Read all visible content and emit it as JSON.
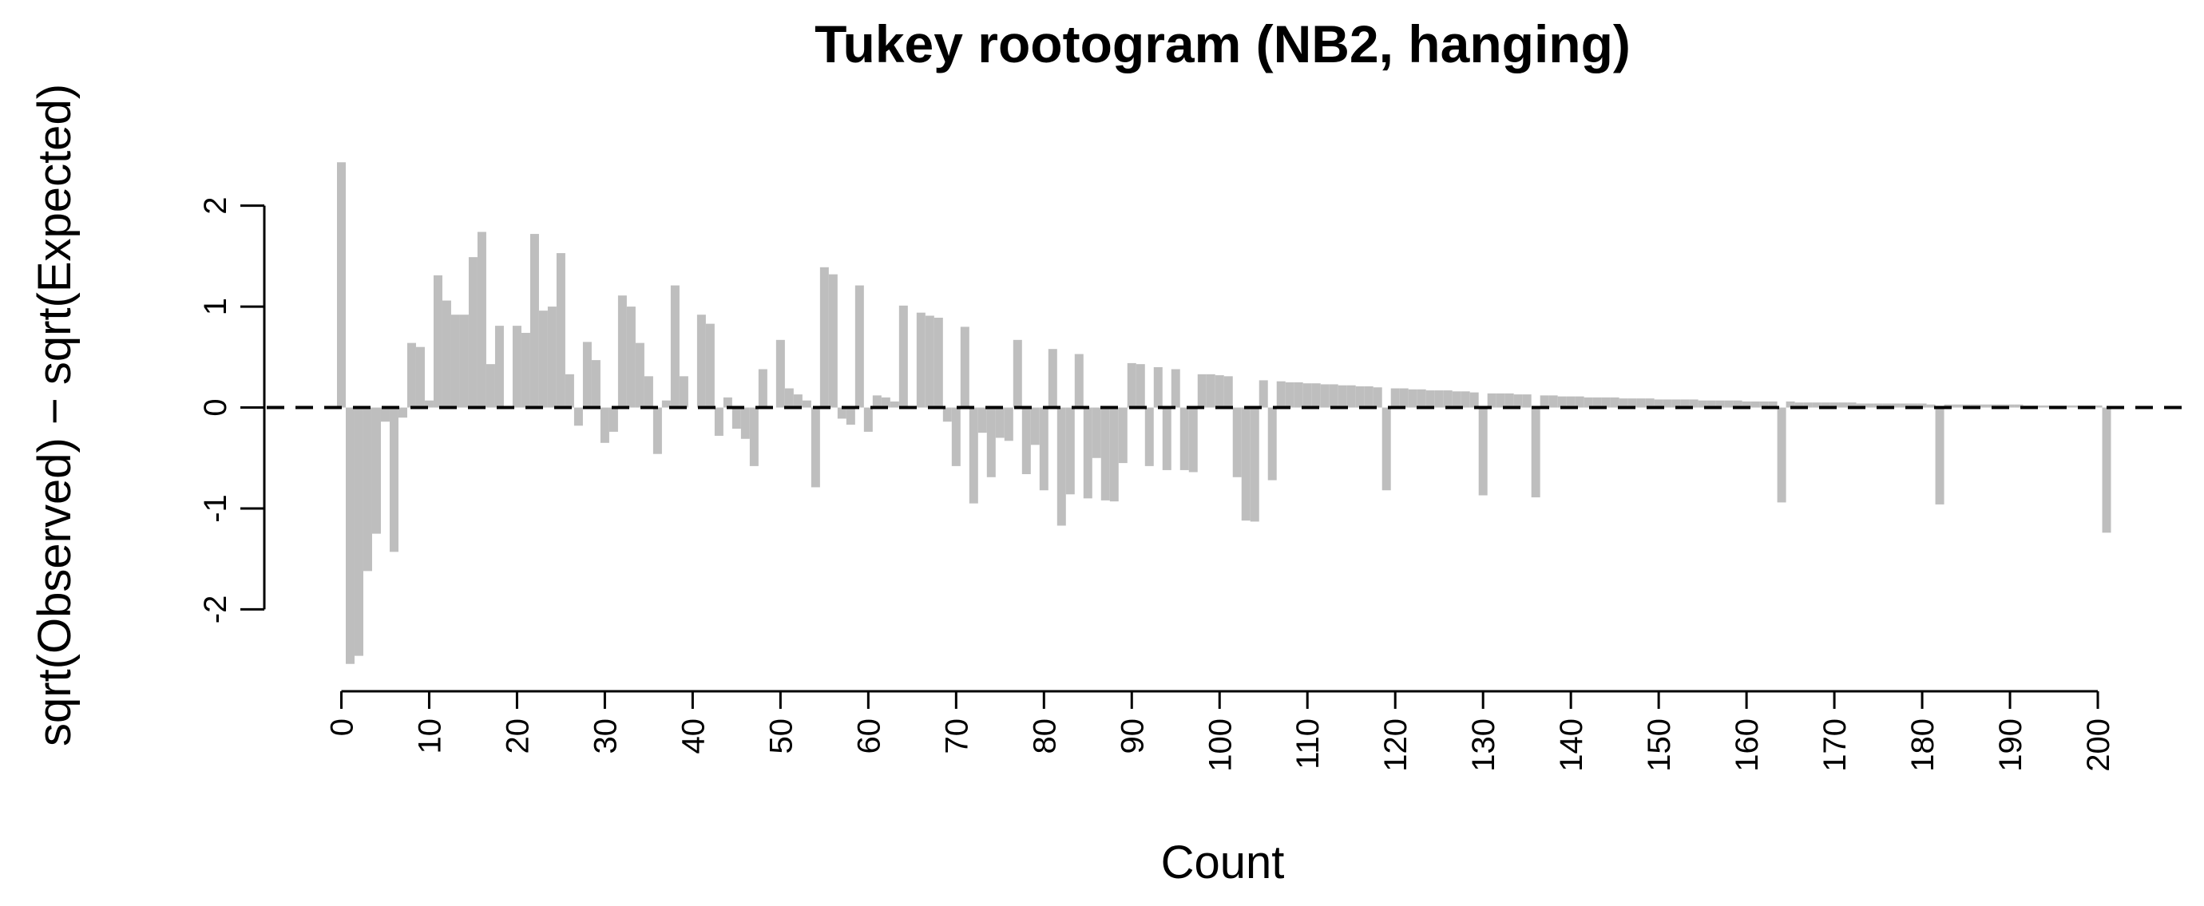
{
  "chart_data": {
    "type": "bar",
    "title": "Tukey rootogram (NB2, hanging)",
    "x_label": "Count",
    "y_label": "sqrt(Observed) − sqrt(Expected)",
    "color": "#bebebe",
    "x": [
      0,
      1,
      2,
      3,
      4,
      5,
      6,
      7,
      8,
      9,
      10,
      11,
      12,
      13,
      14,
      15,
      16,
      17,
      18,
      20,
      21,
      22,
      23,
      24,
      25,
      26,
      27,
      28,
      29,
      30,
      31,
      32,
      33,
      34,
      35,
      36,
      37,
      38,
      39,
      41,
      42,
      43,
      44,
      45,
      46,
      47,
      48,
      50,
      51,
      52,
      53,
      54,
      55,
      56,
      57,
      58,
      59,
      60,
      61,
      62,
      63,
      64,
      66,
      67,
      68,
      69,
      70,
      71,
      72,
      73,
      74,
      75,
      76,
      77,
      78,
      79,
      80,
      81,
      82,
      83,
      84,
      85,
      86,
      87,
      88,
      89,
      90,
      91,
      92,
      93,
      94,
      95,
      96,
      97,
      98,
      99,
      100,
      101,
      102,
      103,
      104,
      105,
      106,
      107,
      108,
      109,
      110,
      111,
      112,
      113,
      114,
      115,
      116,
      117,
      118,
      119,
      120,
      121,
      122,
      123,
      124,
      125,
      126,
      127,
      128,
      129,
      130,
      131,
      132,
      133,
      134,
      135,
      136,
      137,
      138,
      139,
      140,
      141,
      142,
      143,
      144,
      145,
      146,
      147,
      148,
      149,
      150,
      151,
      152,
      153,
      154,
      155,
      156,
      157,
      158,
      159,
      160,
      161,
      162,
      163,
      164,
      165,
      166,
      167,
      168,
      169,
      170,
      171,
      172,
      173,
      174,
      175,
      176,
      177,
      178,
      179,
      180,
      181,
      182,
      183,
      184,
      185,
      186,
      187,
      188,
      189,
      190,
      191,
      192,
      193,
      194,
      195,
      196,
      197,
      198,
      199,
      200,
      201
    ],
    "values": [
      2.43,
      -2.54,
      -2.46,
      -1.62,
      -1.25,
      -0.14,
      -1.43,
      -0.1,
      0.64,
      0.6,
      0.07,
      1.31,
      1.06,
      0.92,
      0.92,
      1.49,
      1.74,
      0.43,
      0.81,
      0.81,
      0.74,
      1.72,
      0.96,
      1.0,
      1.53,
      0.33,
      -0.18,
      0.65,
      0.47,
      -0.35,
      -0.24,
      1.11,
      1.0,
      0.64,
      0.31,
      -0.46,
      0.07,
      1.21,
      0.31,
      0.92,
      0.83,
      -0.28,
      0.1,
      -0.21,
      -0.31,
      -0.58,
      0.38,
      0.67,
      0.19,
      0.13,
      0.07,
      -0.79,
      1.39,
      1.32,
      -0.11,
      -0.17,
      1.21,
      -0.24,
      0.12,
      0.1,
      0.06,
      1.01,
      0.94,
      0.91,
      0.89,
      -0.14,
      -0.58,
      0.8,
      -0.95,
      -0.25,
      -0.69,
      -0.3,
      -0.33,
      0.67,
      -0.66,
      -0.37,
      -0.82,
      0.58,
      -1.17,
      -0.86,
      0.53,
      -0.9,
      -0.5,
      -0.92,
      -0.93,
      -0.55,
      0.44,
      0.43,
      -0.58,
      0.4,
      -0.62,
      0.38,
      -0.62,
      -0.64,
      0.33,
      0.33,
      0.32,
      0.31,
      -0.69,
      -1.12,
      -1.13,
      0.27,
      -0.72,
      0.26,
      0.25,
      0.25,
      0.24,
      0.24,
      0.23,
      0.23,
      0.22,
      0.22,
      0.21,
      0.21,
      0.2,
      -0.82,
      0.19,
      0.19,
      0.18,
      0.18,
      0.17,
      0.17,
      0.17,
      0.16,
      0.16,
      0.15,
      -0.87,
      0.14,
      0.14,
      0.14,
      0.13,
      0.13,
      -0.89,
      0.12,
      0.12,
      0.11,
      0.11,
      0.11,
      0.1,
      0.1,
      0.1,
      0.1,
      0.09,
      0.09,
      0.09,
      0.09,
      0.08,
      0.08,
      0.08,
      0.08,
      0.08,
      0.07,
      0.07,
      0.07,
      0.07,
      0.07,
      0.06,
      0.06,
      0.06,
      0.06,
      -0.94,
      0.06,
      0.05,
      0.05,
      0.05,
      0.05,
      0.05,
      0.05,
      0.05,
      0.04,
      0.04,
      0.04,
      0.04,
      0.04,
      0.04,
      0.04,
      0.04,
      0.03,
      -0.96,
      0.03,
      0.03,
      0.03,
      0.03,
      0.03,
      0.03,
      0.03,
      0.03,
      0.03,
      0.02,
      0.02,
      0.02,
      0.02,
      0.02,
      0.02,
      0.02,
      0.02,
      0.02,
      -1.24
    ],
    "xlim": [
      -8.5,
      210
    ],
    "ylim": [
      -2.74,
      2.63
    ],
    "xticks": [
      0,
      10,
      20,
      30,
      40,
      50,
      60,
      70,
      80,
      90,
      100,
      110,
      120,
      130,
      140,
      150,
      160,
      170,
      180,
      190,
      200
    ],
    "yticks": [
      -2,
      -1,
      0,
      1,
      2
    ]
  }
}
